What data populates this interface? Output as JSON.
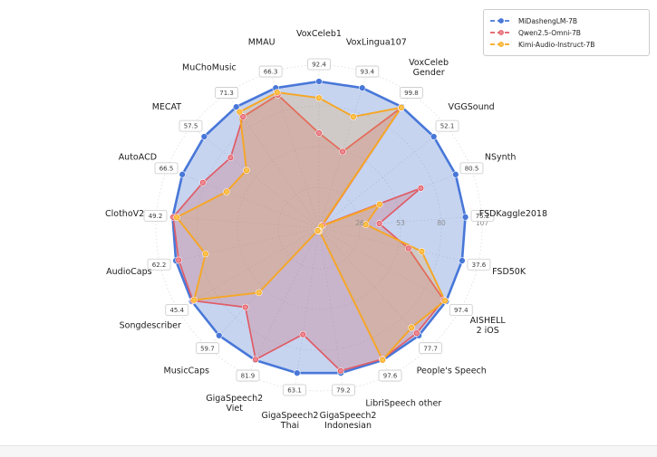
{
  "page": {
    "background": "#ffffff"
  },
  "legend": {
    "position": "top-right"
  },
  "chart_data": {
    "type": "radar",
    "title": "",
    "grid": true,
    "legend_position": "top-right",
    "normalization": "per-axis: outer ring equals MiDashengLM-7B score shown in the value badge",
    "radial_ticks": [
      26,
      53,
      80,
      107
    ],
    "radial_tick_color": "#8c8c8c",
    "categories": [
      "VoxCeleb1",
      "VoxLingua107",
      "VoxCeleb\nGender",
      "VGGSound",
      "NSynth",
      "FSDKaggle2018",
      "FSD50K",
      "AISHELL\n2 iOS",
      "People's Speech",
      "LibriSpeech other",
      "GigaSpeech2\nIndonesian",
      "GigaSpeech2\nThai",
      "GigaSpeech2\nViet",
      "MusicCaps",
      "Songdescriber",
      "AudioCaps",
      "ClothoV2",
      "AutoACD",
      "MECAT",
      "MuChoMusic",
      "MMAU"
    ],
    "axis_max_values": [
      92.4,
      93.4,
      99.8,
      52.1,
      80.5,
      75.2,
      37.6,
      97.4,
      77.7,
      97.6,
      79.2,
      63.1,
      81.9,
      59.7,
      45.4,
      62.2,
      49.2,
      66.5,
      57.5,
      71.3,
      66.3
    ],
    "series": [
      {
        "name": "MiDashengLM-7B",
        "color": "#4877d8",
        "fill": "rgba(93,132,212,0.35)",
        "marker_fill": "#4877d8",
        "line_width": 2.6,
        "values": [
          92.4,
          93.4,
          99.8,
          52.1,
          80.5,
          75.2,
          37.6,
          97.4,
          77.7,
          97.6,
          79.2,
          63.1,
          81.9,
          59.7,
          45.4,
          62.2,
          49.2,
          66.5,
          57.5,
          71.3,
          66.3
        ]
      },
      {
        "name": "Qwen2.5-Omni-7B",
        "color": "#e05c66",
        "fill": "rgba(204,108,118,0.30)",
        "marker_fill": "#ef8a92",
        "line_width": 1.7,
        "values": [
          59.9,
          51.0,
          99.0,
          1.6,
          60.0,
          31.0,
          23.5,
          95.5,
          76.0,
          96.9,
          78.0,
          46.3,
          81.5,
          44.0,
          45.0,
          61.0,
          49.0,
          56.5,
          44.3,
          65.5,
          63.0
        ]
      },
      {
        "name": "Kimi-Audio-Instruct-7B",
        "color": "#f7a623",
        "fill": "rgba(247,166,35,0.20)",
        "marker_fill": "#fdc54f",
        "line_width": 1.9,
        "values": [
          82.0,
          74.2,
          99.3,
          1.0,
          35.7,
          24.0,
          27.0,
          96.5,
          72.0,
          97.5,
          1.6,
          1.3,
          1.6,
          35.9,
          44.6,
          49.3,
          47.8,
          45.0,
          36.3,
          68.4,
          64.2
        ]
      }
    ]
  }
}
